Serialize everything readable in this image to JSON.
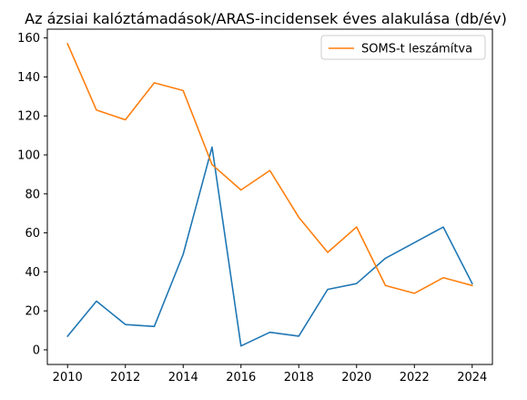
{
  "chart_data": {
    "type": "line",
    "title": "Az ázsiai kalóztámadások/ARAS-incidensek éves alakulása (db/év)",
    "xlabel": "",
    "ylabel": "",
    "x": [
      2010,
      2011,
      2012,
      2013,
      2014,
      2015,
      2016,
      2017,
      2018,
      2019,
      2020,
      2021,
      2022,
      2023,
      2024
    ],
    "xlim": [
      2009.3,
      2024.7
    ],
    "ylim": [
      -7.5,
      164.5
    ],
    "xticks": [
      "2010",
      "2012",
      "2014",
      "2016",
      "2018",
      "2020",
      "2022",
      "2024"
    ],
    "yticks": [
      "0",
      "20",
      "40",
      "60",
      "80",
      "100",
      "120",
      "140",
      "160"
    ],
    "grid": false,
    "legend_position": "top-right",
    "series": [
      {
        "name": "",
        "color": "#1f77b4",
        "values": [
          7,
          25,
          13,
          12,
          49,
          104,
          2,
          9,
          7,
          31,
          34,
          47,
          55,
          63,
          34
        ]
      },
      {
        "name": "SOMS-t leszámítva",
        "color": "#ff7f0e",
        "values": [
          157,
          123,
          118,
          137,
          133,
          95,
          82,
          92,
          68,
          50,
          63,
          33,
          29,
          37,
          33
        ]
      }
    ]
  }
}
